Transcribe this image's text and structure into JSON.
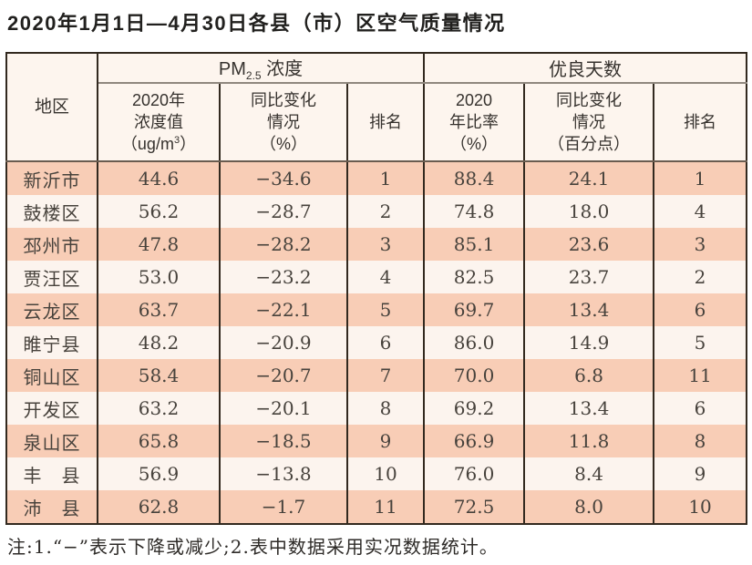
{
  "title": "2020年1月1日—4月30日各县（市）区空气质量情况",
  "footnote": "注:1.“−”表示下降或减少;2.表中数据采用实况数据统计。",
  "colors": {
    "row_salmon": "#f8cdb6",
    "row_light": "#fcf4ee",
    "header_bg": "#fdf5ee",
    "border_dark": "#32291f",
    "gray_line": "#8f877e",
    "header_sep": "#6a5c50",
    "text_dark": "#47423c"
  },
  "table": {
    "corner_header": "地区",
    "group_pm": {
      "prefix": "PM",
      "sub": "2.5",
      "suffix": " 浓度"
    },
    "group_days": "优良天数",
    "subheaders": {
      "pm_value": {
        "l1": "2020年",
        "l2": "浓度值",
        "l3a": "（ug/m",
        "sup": "3",
        "l3b": "）"
      },
      "pm_change": {
        "l1": "同比变化",
        "l2": "情况",
        "l3": "（%）"
      },
      "pm_rank": "排名",
      "days_rate": {
        "l1": "2020",
        "l2": "年比率",
        "l3": "（%）"
      },
      "days_change": {
        "l1": "同比变化",
        "l2": "情况",
        "l3": "（百分点）"
      },
      "days_rank": "排名"
    },
    "rows": [
      {
        "region": "新沂市",
        "pm_value": "44.6",
        "pm_change": "−34.6",
        "pm_rank": "1",
        "days_rate": "88.4",
        "days_change": "24.1",
        "days_rank": "1"
      },
      {
        "region": "鼓楼区",
        "pm_value": "56.2",
        "pm_change": "−28.7",
        "pm_rank": "2",
        "days_rate": "74.8",
        "days_change": "18.0",
        "days_rank": "4"
      },
      {
        "region": "邳州市",
        "pm_value": "47.8",
        "pm_change": "−28.2",
        "pm_rank": "3",
        "days_rate": "85.1",
        "days_change": "23.6",
        "days_rank": "3"
      },
      {
        "region": "贾汪区",
        "pm_value": "53.0",
        "pm_change": "−23.2",
        "pm_rank": "4",
        "days_rate": "82.5",
        "days_change": "23.7",
        "days_rank": "2"
      },
      {
        "region": "云龙区",
        "pm_value": "63.7",
        "pm_change": "−22.1",
        "pm_rank": "5",
        "days_rate": "69.7",
        "days_change": "13.4",
        "days_rank": "6"
      },
      {
        "region": "睢宁县",
        "pm_value": "48.2",
        "pm_change": "−20.9",
        "pm_rank": "6",
        "days_rate": "86.0",
        "days_change": "14.9",
        "days_rank": "5"
      },
      {
        "region": "铜山区",
        "pm_value": "58.4",
        "pm_change": "−20.7",
        "pm_rank": "7",
        "days_rate": "70.0",
        "days_change": "6.8",
        "days_rank": "11"
      },
      {
        "region": "开发区",
        "pm_value": "63.2",
        "pm_change": "−20.1",
        "pm_rank": "8",
        "days_rate": "69.2",
        "days_change": "13.4",
        "days_rank": "6"
      },
      {
        "region": "泉山区",
        "pm_value": "65.8",
        "pm_change": "−18.5",
        "pm_rank": "9",
        "days_rate": "66.9",
        "days_change": "11.8",
        "days_rank": "8"
      },
      {
        "region": "丰　县",
        "pm_value": "56.9",
        "pm_change": "−13.8",
        "pm_rank": "10",
        "days_rate": "76.0",
        "days_change": "8.4",
        "days_rank": "9"
      },
      {
        "region": "沛　县",
        "pm_value": "62.8",
        "pm_change": "−1.7",
        "pm_rank": "11",
        "days_rate": "72.5",
        "days_change": "8.0",
        "days_rank": "10"
      }
    ]
  }
}
